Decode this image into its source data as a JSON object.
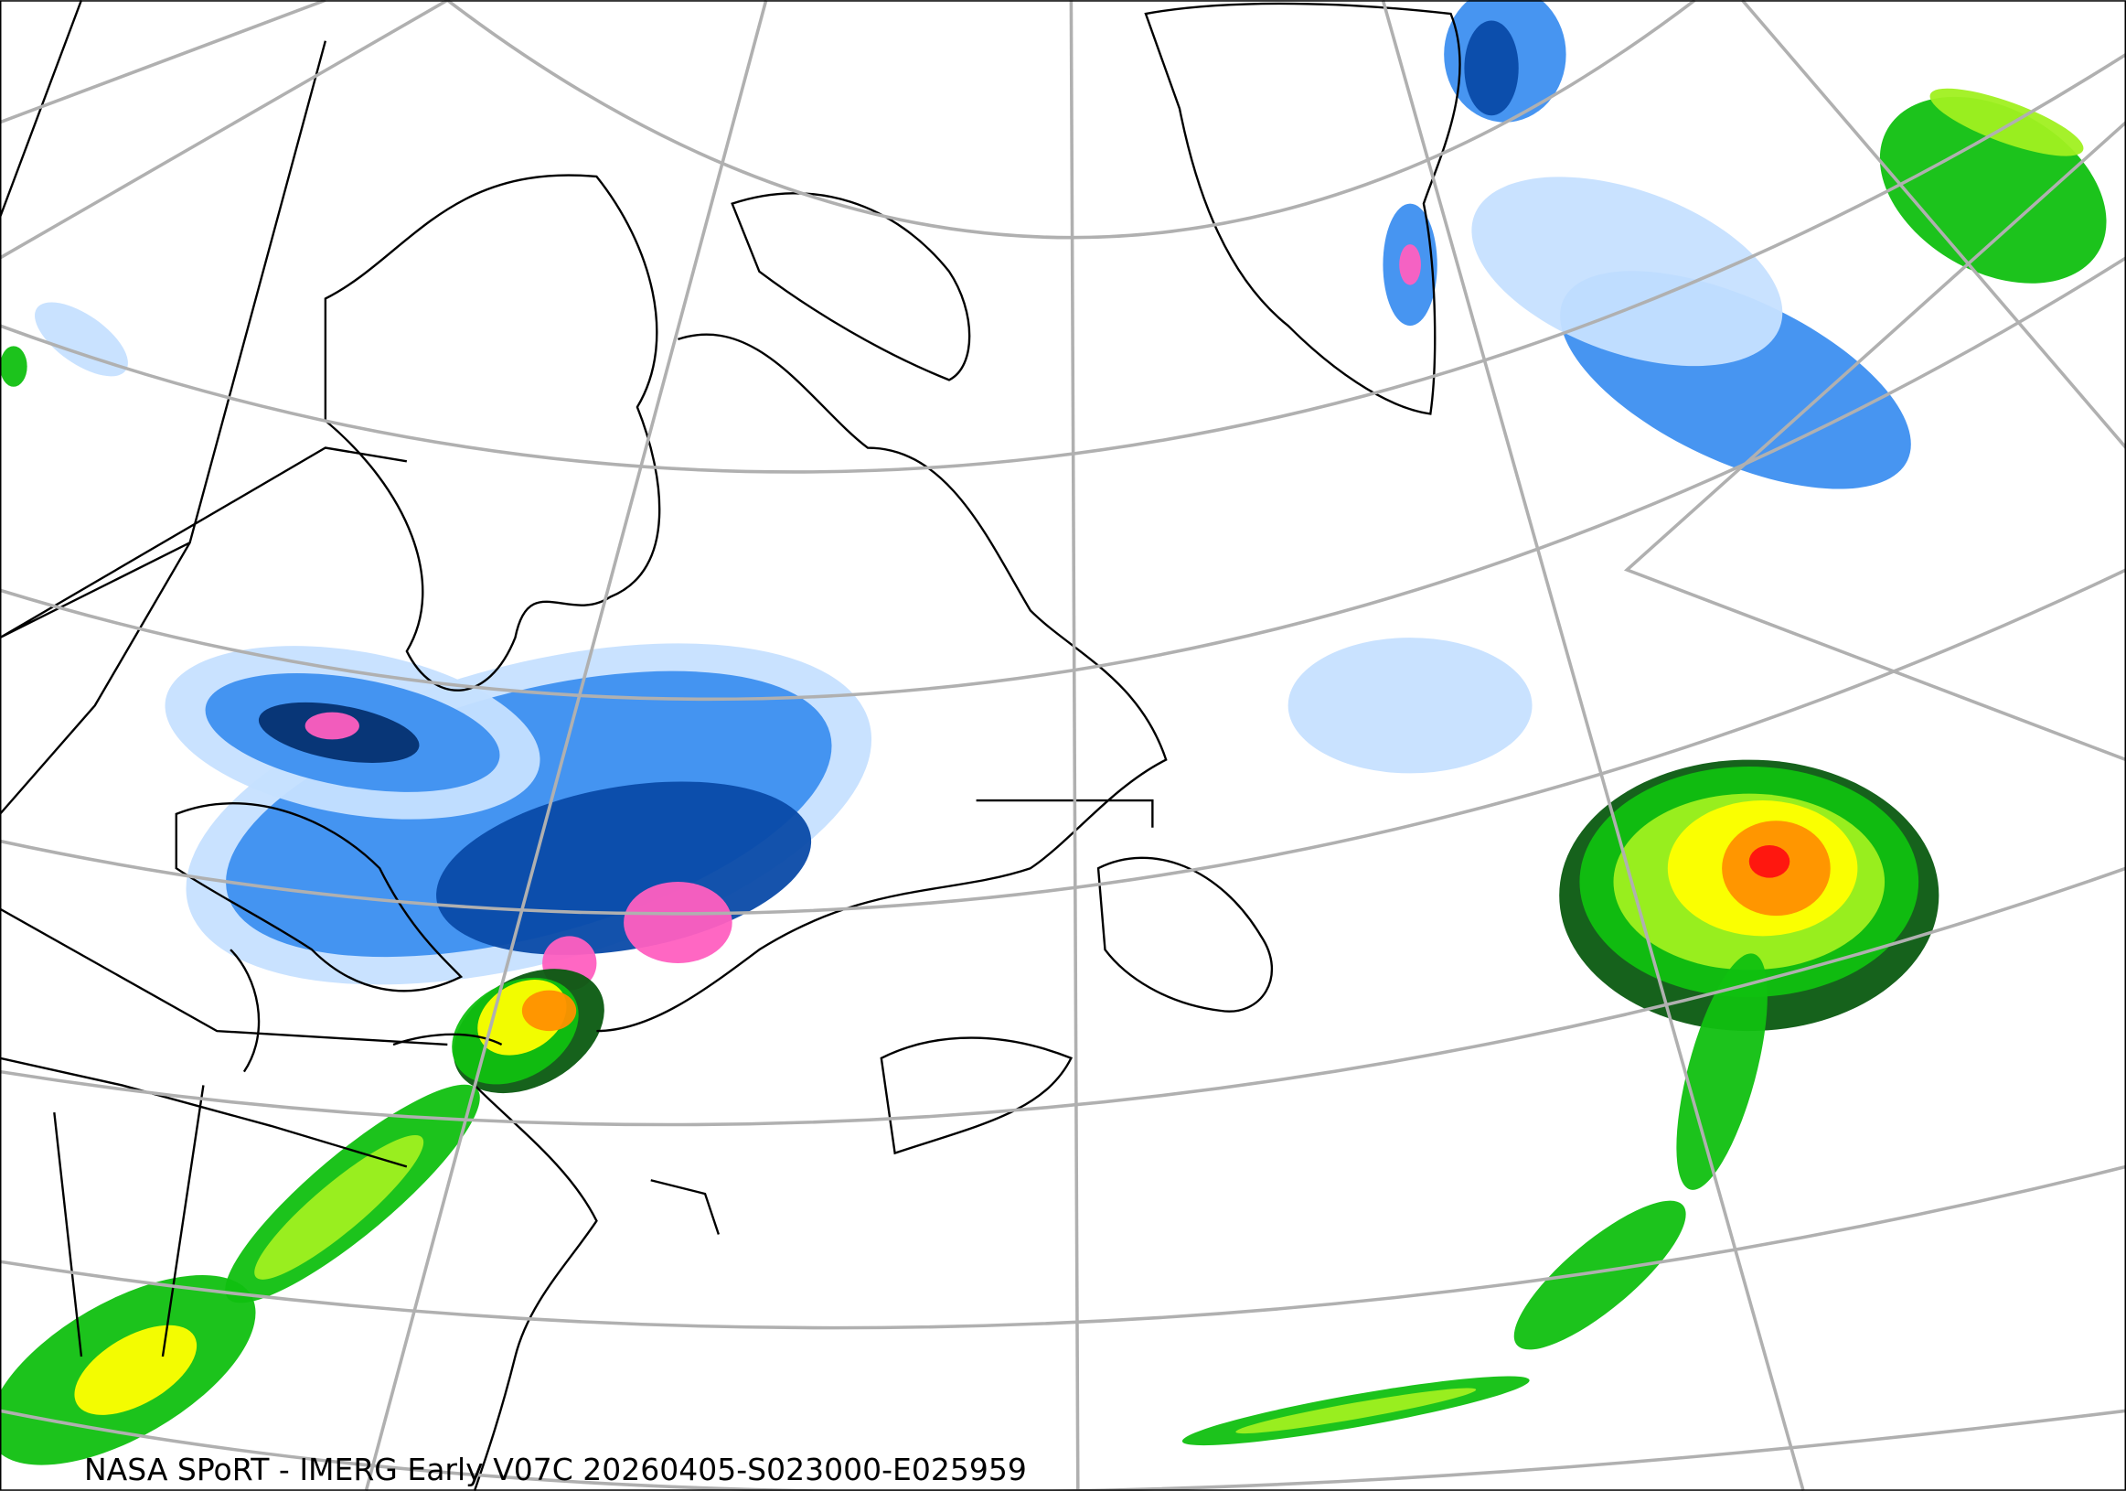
{
  "caption": "NASA SPoRT - IMERG Early V07C 20260405-S023000-E025959",
  "colors": {
    "light_blue": "#c6e0ff",
    "blue": "#3d8ff0",
    "dark_blue": "#0a4aa8",
    "navy": "#053070",
    "pink": "#ff5fc0",
    "dark_green": "#0a5a10",
    "green": "#10c010",
    "lime": "#a0f020",
    "yellow": "#ffff00",
    "orange": "#ff9000",
    "red": "#ff1010",
    "graticule": "#b0b0b0",
    "coastline": "#000000"
  }
}
